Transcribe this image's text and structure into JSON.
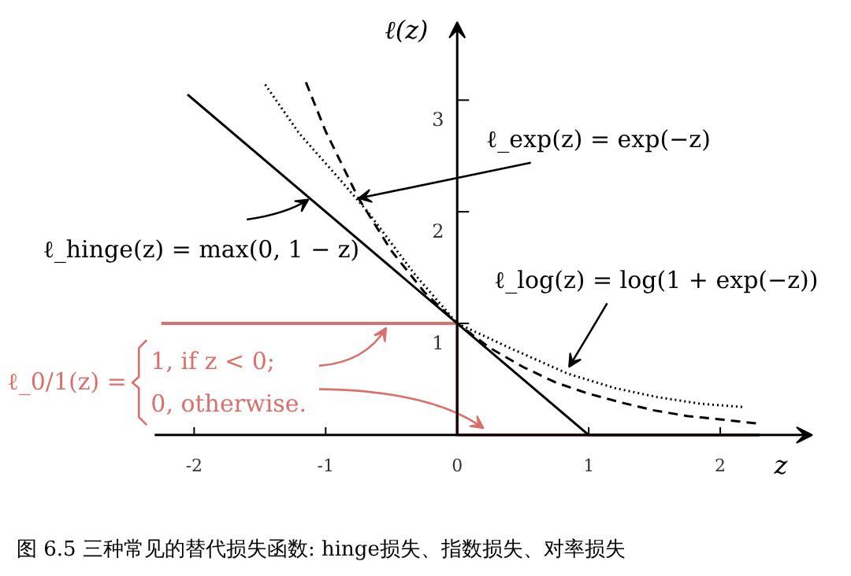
{
  "chart_data": {
    "type": "line",
    "xlabel": "z",
    "ylabel": "ℓ(z)",
    "xlim": [
      -2.3,
      2.7
    ],
    "ylim": [
      0,
      3.7
    ],
    "xticks": [
      -2,
      -1,
      0,
      1,
      2
    ],
    "yticks": [
      1,
      2,
      3
    ],
    "series": [
      {
        "color": "#d9706b",
        "line_style": "solid",
        "x": [
          -2.25,
          0,
          0,
          2.3
        ],
        "values": [
          1,
          1,
          0,
          0
        ]
      },
      {
        "color": "#000000",
        "line_style": "solid",
        "x": [
          -2.05,
          1,
          2.3
        ],
        "values": [
          3.05,
          0,
          0
        ]
      },
      {
        "color": "#000000",
        "line_style": "dashed",
        "x": [
          -1.15,
          -1,
          -0.75,
          -0.5,
          -0.25,
          0,
          0.25,
          0.5,
          0.75,
          1,
          1.25,
          1.5,
          1.75,
          2,
          2.3
        ],
        "values": [
          3.16,
          2.72,
          2.12,
          1.65,
          1.28,
          1,
          0.78,
          0.61,
          0.47,
          0.37,
          0.29,
          0.22,
          0.17,
          0.14,
          0.1
        ]
      },
      {
        "color": "#000000",
        "line_style": "dotted",
        "x": [
          -1.46,
          -1.2,
          -0.9,
          -0.68,
          -0.33,
          0,
          0.4,
          0.84,
          1.2,
          1.52,
          1.85,
          2.18
        ],
        "values": [
          3.14,
          2.7,
          2.3,
          2.0,
          1.45,
          1.0,
          0.78,
          0.55,
          0.42,
          0.34,
          0.28,
          0.25
        ]
      }
    ],
    "annotations": [
      {
        "text": "ℓ_exp(z) = exp(−z)",
        "x": -0.75,
        "y": 2.12
      },
      {
        "text": "ℓ_hinge(z) = max(0, 1 − z)",
        "x": -1.13,
        "y": 2.11
      },
      {
        "text": "ℓ_log(z) = log(1 + exp(−z))",
        "x": 0.85,
        "y": 0.61
      },
      "ℓ_0/1(z) =",
      "1,   if z < 0;",
      {
        "text": "0,   otherwise.",
        "x": 0.2,
        "y": 0.06
      },
      "图 6.5   三种常见的替代损失函数: hinge损失、指数损失、对率损失"
    ]
  }
}
